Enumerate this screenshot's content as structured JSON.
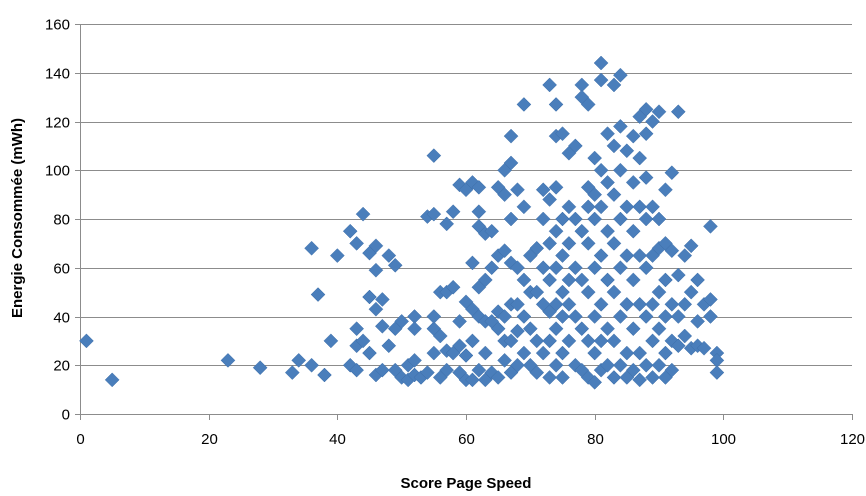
{
  "chart_data": {
    "type": "scatter",
    "title": "",
    "xlabel": "Score Page Speed",
    "ylabel": "Energie Consommée (mWh)",
    "xlim": [
      0,
      120
    ],
    "ylim": [
      0,
      160
    ],
    "xticks": [
      0,
      20,
      40,
      60,
      80,
      100,
      120
    ],
    "yticks": [
      0,
      20,
      40,
      60,
      80,
      100,
      120,
      140,
      160
    ],
    "grid": "horizontal",
    "legend": "none",
    "marker": "diamond",
    "color": "#4a7ebb",
    "series": [
      {
        "points": [
          [
            1,
            30
          ],
          [
            5,
            14
          ],
          [
            23,
            22
          ],
          [
            28,
            19
          ],
          [
            33,
            17
          ],
          [
            34,
            22
          ],
          [
            36,
            68
          ],
          [
            36,
            20
          ],
          [
            37,
            49
          ],
          [
            38,
            16
          ],
          [
            39,
            30
          ],
          [
            40,
            65
          ],
          [
            42,
            75
          ],
          [
            42,
            20
          ],
          [
            43,
            70
          ],
          [
            43,
            35
          ],
          [
            43,
            28
          ],
          [
            43,
            18
          ],
          [
            44,
            82
          ],
          [
            44,
            30
          ],
          [
            45,
            25
          ],
          [
            45,
            48
          ],
          [
            45,
            66
          ],
          [
            46,
            69
          ],
          [
            46,
            59
          ],
          [
            46,
            43
          ],
          [
            46,
            16
          ],
          [
            47,
            47
          ],
          [
            47,
            36
          ],
          [
            47,
            18
          ],
          [
            48,
            65
          ],
          [
            48,
            28
          ],
          [
            49,
            61
          ],
          [
            49,
            35
          ],
          [
            49,
            18
          ],
          [
            50,
            15
          ],
          [
            50,
            38
          ],
          [
            51,
            20
          ],
          [
            51,
            14
          ],
          [
            52,
            40
          ],
          [
            52,
            35
          ],
          [
            52,
            22
          ],
          [
            52,
            16
          ],
          [
            53,
            15
          ],
          [
            54,
            17
          ],
          [
            54,
            81
          ],
          [
            55,
            82
          ],
          [
            55,
            106
          ],
          [
            55,
            35
          ],
          [
            55,
            25
          ],
          [
            55,
            40
          ],
          [
            56,
            50
          ],
          [
            56,
            15
          ],
          [
            56,
            32
          ],
          [
            57,
            78
          ],
          [
            57,
            50
          ],
          [
            57,
            26
          ],
          [
            57,
            18
          ],
          [
            58,
            52
          ],
          [
            58,
            83
          ],
          [
            58,
            25
          ],
          [
            59,
            94
          ],
          [
            59,
            38
          ],
          [
            59,
            28
          ],
          [
            59,
            17
          ],
          [
            60,
            92
          ],
          [
            60,
            46
          ],
          [
            60,
            24
          ],
          [
            60,
            14
          ],
          [
            61,
            95
          ],
          [
            61,
            62
          ],
          [
            61,
            43
          ],
          [
            61,
            30
          ],
          [
            61,
            14
          ],
          [
            62,
            93
          ],
          [
            62,
            83
          ],
          [
            62,
            77
          ],
          [
            62,
            52
          ],
          [
            62,
            40
          ],
          [
            62,
            18
          ],
          [
            63,
            74
          ],
          [
            63,
            55
          ],
          [
            63,
            38
          ],
          [
            63,
            25
          ],
          [
            63,
            14
          ],
          [
            64,
            75
          ],
          [
            64,
            60
          ],
          [
            64,
            38
          ],
          [
            64,
            17
          ],
          [
            65,
            93
          ],
          [
            65,
            65
          ],
          [
            65,
            42
          ],
          [
            65,
            35
          ],
          [
            65,
            15
          ],
          [
            66,
            100
          ],
          [
            66,
            90
          ],
          [
            66,
            67
          ],
          [
            66,
            40
          ],
          [
            66,
            30
          ],
          [
            66,
            22
          ],
          [
            67,
            114
          ],
          [
            67,
            103
          ],
          [
            67,
            80
          ],
          [
            67,
            62
          ],
          [
            67,
            45
          ],
          [
            67,
            30
          ],
          [
            67,
            17
          ],
          [
            68,
            92
          ],
          [
            68,
            60
          ],
          [
            68,
            45
          ],
          [
            68,
            34
          ],
          [
            68,
            20
          ],
          [
            69,
            127
          ],
          [
            69,
            85
          ],
          [
            69,
            55
          ],
          [
            69,
            40
          ],
          [
            69,
            25
          ],
          [
            70,
            65
          ],
          [
            70,
            50
          ],
          [
            70,
            35
          ],
          [
            70,
            20
          ],
          [
            71,
            68
          ],
          [
            71,
            50
          ],
          [
            71,
            30
          ],
          [
            71,
            17
          ],
          [
            72,
            92
          ],
          [
            72,
            80
          ],
          [
            72,
            60
          ],
          [
            72,
            45
          ],
          [
            72,
            25
          ],
          [
            73,
            135
          ],
          [
            73,
            88
          ],
          [
            73,
            70
          ],
          [
            73,
            55
          ],
          [
            73,
            42
          ],
          [
            73,
            30
          ],
          [
            73,
            15
          ],
          [
            74,
            127
          ],
          [
            74,
            114
          ],
          [
            74,
            93
          ],
          [
            74,
            75
          ],
          [
            74,
            60
          ],
          [
            74,
            45
          ],
          [
            74,
            35
          ],
          [
            74,
            20
          ],
          [
            75,
            115
          ],
          [
            75,
            80
          ],
          [
            75,
            65
          ],
          [
            75,
            50
          ],
          [
            75,
            40
          ],
          [
            75,
            25
          ],
          [
            75,
            15
          ],
          [
            76,
            107
          ],
          [
            76,
            85
          ],
          [
            76,
            70
          ],
          [
            76,
            55
          ],
          [
            76,
            45
          ],
          [
            76,
            30
          ],
          [
            77,
            110
          ],
          [
            77,
            80
          ],
          [
            77,
            60
          ],
          [
            77,
            40
          ],
          [
            77,
            20
          ],
          [
            78,
            135
          ],
          [
            78,
            130
          ],
          [
            78,
            75
          ],
          [
            78,
            55
          ],
          [
            78,
            35
          ],
          [
            78,
            18
          ],
          [
            79,
            127
          ],
          [
            79,
            93
          ],
          [
            79,
            85
          ],
          [
            79,
            70
          ],
          [
            79,
            50
          ],
          [
            79,
            30
          ],
          [
            79,
            15
          ],
          [
            80,
            105
          ],
          [
            80,
            90
          ],
          [
            80,
            80
          ],
          [
            80,
            60
          ],
          [
            80,
            40
          ],
          [
            80,
            25
          ],
          [
            80,
            13
          ],
          [
            81,
            144
          ],
          [
            81,
            137
          ],
          [
            81,
            100
          ],
          [
            81,
            85
          ],
          [
            81,
            65
          ],
          [
            81,
            45
          ],
          [
            81,
            30
          ],
          [
            81,
            18
          ],
          [
            82,
            115
          ],
          [
            82,
            95
          ],
          [
            82,
            75
          ],
          [
            82,
            55
          ],
          [
            82,
            35
          ],
          [
            82,
            20
          ],
          [
            83,
            135
          ],
          [
            83,
            110
          ],
          [
            83,
            90
          ],
          [
            83,
            70
          ],
          [
            83,
            50
          ],
          [
            83,
            30
          ],
          [
            83,
            15
          ],
          [
            84,
            139
          ],
          [
            84,
            118
          ],
          [
            84,
            100
          ],
          [
            84,
            80
          ],
          [
            84,
            60
          ],
          [
            84,
            40
          ],
          [
            84,
            20
          ],
          [
            85,
            108
          ],
          [
            85,
            85
          ],
          [
            85,
            65
          ],
          [
            85,
            45
          ],
          [
            85,
            25
          ],
          [
            85,
            15
          ],
          [
            86,
            114
          ],
          [
            86,
            95
          ],
          [
            86,
            75
          ],
          [
            86,
            55
          ],
          [
            86,
            35
          ],
          [
            86,
            18
          ],
          [
            87,
            122
          ],
          [
            87,
            105
          ],
          [
            87,
            85
          ],
          [
            87,
            65
          ],
          [
            87,
            45
          ],
          [
            87,
            25
          ],
          [
            87,
            14
          ],
          [
            88,
            125
          ],
          [
            88,
            115
          ],
          [
            88,
            97
          ],
          [
            88,
            80
          ],
          [
            88,
            60
          ],
          [
            88,
            40
          ],
          [
            88,
            20
          ],
          [
            89,
            120
          ],
          [
            89,
            85
          ],
          [
            89,
            65
          ],
          [
            89,
            45
          ],
          [
            89,
            30
          ],
          [
            89,
            15
          ],
          [
            90,
            124
          ],
          [
            90,
            80
          ],
          [
            90,
            68
          ],
          [
            90,
            50
          ],
          [
            90,
            35
          ],
          [
            90,
            20
          ],
          [
            91,
            92
          ],
          [
            91,
            70
          ],
          [
            91,
            55
          ],
          [
            91,
            40
          ],
          [
            91,
            25
          ],
          [
            91,
            15
          ],
          [
            92,
            99
          ],
          [
            92,
            67
          ],
          [
            92,
            45
          ],
          [
            92,
            30
          ],
          [
            92,
            18
          ],
          [
            93,
            124
          ],
          [
            93,
            57
          ],
          [
            93,
            40
          ],
          [
            93,
            28
          ],
          [
            94,
            65
          ],
          [
            94,
            45
          ],
          [
            94,
            32
          ],
          [
            95,
            69
          ],
          [
            95,
            50
          ],
          [
            95,
            27
          ],
          [
            96,
            55
          ],
          [
            96,
            38
          ],
          [
            96,
            28
          ],
          [
            97,
            45
          ],
          [
            97,
            27
          ],
          [
            98,
            77
          ],
          [
            98,
            47
          ],
          [
            98,
            40
          ],
          [
            99,
            25
          ],
          [
            99,
            22
          ],
          [
            99,
            17
          ]
        ]
      }
    ]
  }
}
